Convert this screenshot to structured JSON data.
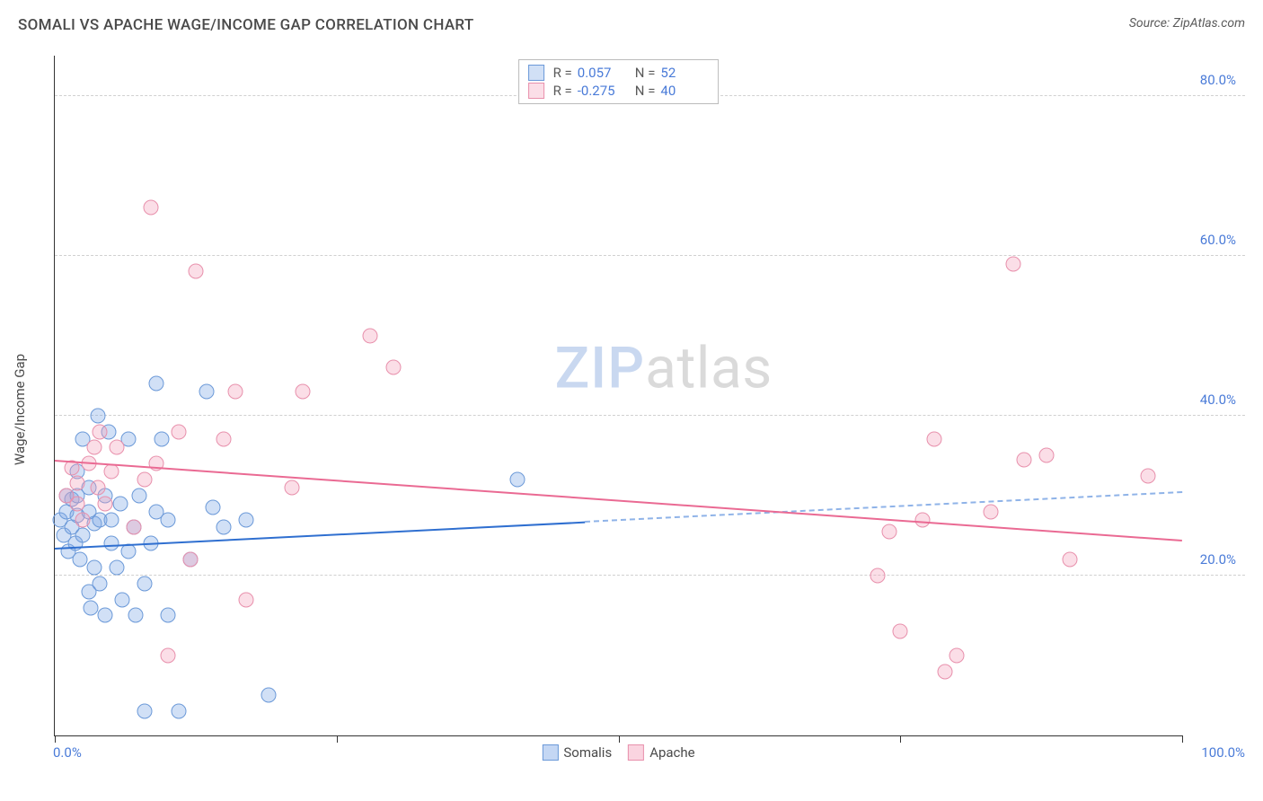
{
  "title": "SOMALI VS APACHE WAGE/INCOME GAP CORRELATION CHART",
  "source": "Source: ZipAtlas.com",
  "watermark": {
    "left": "ZIP",
    "right": "atlas"
  },
  "chart": {
    "type": "scatter",
    "y_axis_label": "Wage/Income Gap",
    "xlim": [
      0,
      100
    ],
    "ylim": [
      0,
      85
    ],
    "x_ticks": [
      0,
      100
    ],
    "x_tick_labels": [
      "0.0%",
      "100.0%"
    ],
    "x_tick_marks": [
      0,
      25,
      50,
      75,
      100
    ],
    "y_ticks": [
      20,
      40,
      60,
      80
    ],
    "y_tick_labels": [
      "20.0%",
      "40.0%",
      "60.0%",
      "80.0%"
    ],
    "background_color": "#ffffff",
    "grid_color": "#d0d0d0",
    "axis_color": "#333333",
    "tick_label_color": "#4a7bd8",
    "series": [
      {
        "name": "Somalis",
        "fill_color": "rgba(124,166,230,0.35)",
        "stroke_color": "#6b99d8",
        "marker_radius": 8.5,
        "R": "0.057",
        "N": "52",
        "trend": {
          "color": "#2f6fd0",
          "y_start": 23.5,
          "y_end": 30.5,
          "x_solid_end": 47,
          "dashed_color": "#8fb3e8"
        },
        "points": [
          [
            0.5,
            27
          ],
          [
            0.8,
            25
          ],
          [
            1,
            28
          ],
          [
            1,
            30
          ],
          [
            1.2,
            23
          ],
          [
            1.5,
            26
          ],
          [
            1.5,
            29.5
          ],
          [
            1.8,
            24
          ],
          [
            2,
            27.5
          ],
          [
            2,
            30
          ],
          [
            2,
            33
          ],
          [
            2.2,
            22
          ],
          [
            2.5,
            37
          ],
          [
            2.5,
            25
          ],
          [
            3,
            31
          ],
          [
            3,
            28
          ],
          [
            3,
            18
          ],
          [
            3.2,
            16
          ],
          [
            3.5,
            21
          ],
          [
            3.5,
            26.5
          ],
          [
            3.8,
            40
          ],
          [
            4,
            19
          ],
          [
            4,
            27
          ],
          [
            4.5,
            30
          ],
          [
            4.5,
            15
          ],
          [
            4.8,
            38
          ],
          [
            5,
            24
          ],
          [
            5,
            27
          ],
          [
            5.5,
            21
          ],
          [
            5.8,
            29
          ],
          [
            6,
            17
          ],
          [
            6.5,
            37
          ],
          [
            6.5,
            23
          ],
          [
            7,
            26
          ],
          [
            7.2,
            15
          ],
          [
            7.5,
            30
          ],
          [
            8,
            19
          ],
          [
            8,
            3
          ],
          [
            8.5,
            24
          ],
          [
            9,
            44
          ],
          [
            9,
            28
          ],
          [
            9.5,
            37
          ],
          [
            10,
            15
          ],
          [
            10,
            27
          ],
          [
            11,
            3
          ],
          [
            12,
            22
          ],
          [
            13.5,
            43
          ],
          [
            14,
            28.5
          ],
          [
            15,
            26
          ],
          [
            17,
            27
          ],
          [
            19,
            5
          ],
          [
            41,
            32
          ]
        ]
      },
      {
        "name": "Apache",
        "fill_color": "rgba(244,160,186,0.35)",
        "stroke_color": "#e890ac",
        "marker_radius": 8.5,
        "R": "-0.275",
        "N": "40",
        "trend": {
          "color": "#ea6a93",
          "y_start": 34.5,
          "y_end": 24.5,
          "x_solid_end": 100
        },
        "points": [
          [
            1,
            30
          ],
          [
            1.5,
            33.5
          ],
          [
            2,
            29
          ],
          [
            2,
            31.5
          ],
          [
            2.5,
            27
          ],
          [
            3,
            34
          ],
          [
            3.5,
            36
          ],
          [
            3.8,
            31
          ],
          [
            4,
            38
          ],
          [
            4.5,
            29
          ],
          [
            5,
            33
          ],
          [
            5.5,
            36
          ],
          [
            7,
            26
          ],
          [
            8,
            32
          ],
          [
            8.5,
            66
          ],
          [
            9,
            34
          ],
          [
            10,
            10
          ],
          [
            11,
            38
          ],
          [
            12,
            22
          ],
          [
            12.5,
            58
          ],
          [
            15,
            37
          ],
          [
            16,
            43
          ],
          [
            17,
            17
          ],
          [
            21,
            31
          ],
          [
            22,
            43
          ],
          [
            28,
            50
          ],
          [
            30,
            46
          ],
          [
            73,
            20
          ],
          [
            74,
            25.5
          ],
          [
            75,
            13
          ],
          [
            77,
            27
          ],
          [
            78,
            37
          ],
          [
            79,
            8
          ],
          [
            80,
            10
          ],
          [
            83,
            28
          ],
          [
            85,
            59
          ],
          [
            86,
            34.5
          ],
          [
            88,
            35
          ],
          [
            90,
            22
          ],
          [
            97,
            32.5
          ]
        ]
      }
    ],
    "legend_bottom": [
      {
        "label": "Somalis",
        "fill": "rgba(124,166,230,0.45)",
        "stroke": "#6b99d8"
      },
      {
        "label": "Apache",
        "fill": "rgba(244,160,186,0.45)",
        "stroke": "#e890ac"
      }
    ]
  }
}
